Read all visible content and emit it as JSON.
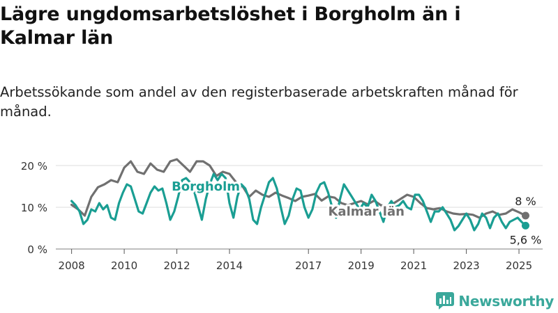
{
  "title": "Lägre ungdomsarbetslöshet i Borgholm än i Kalmar län",
  "subtitle": "Arbetssökande som andel av den registerbaserade arbetskraften månad för månad.",
  "brand": {
    "name": "Newsworthy"
  },
  "colors": {
    "borgholm": "#1a9e93",
    "kalmar": "#707070",
    "grid": "#dddddd"
  },
  "chart_data": {
    "type": "line",
    "x_unit": "year",
    "xlim": [
      2007.4,
      2025.9
    ],
    "ylim": [
      0,
      22
    ],
    "y_ticks": [
      {
        "value": 0,
        "label": "0 %"
      },
      {
        "value": 10,
        "label": "10 %"
      },
      {
        "value": 20,
        "label": "20 %"
      }
    ],
    "x_ticks": [
      {
        "value": 2008,
        "label": "2008"
      },
      {
        "value": 2010,
        "label": "2010"
      },
      {
        "value": 2012,
        "label": "2012"
      },
      {
        "value": 2014,
        "label": "2014"
      },
      {
        "value": 2017,
        "label": "2017"
      },
      {
        "value": 2019,
        "label": "2019"
      },
      {
        "value": 2021,
        "label": "2021"
      },
      {
        "value": 2023,
        "label": "2023"
      },
      {
        "value": 2025,
        "label": "2025"
      }
    ],
    "grid": true,
    "series": [
      {
        "name": "Kalmar län",
        "color": "#707070",
        "end_label": "8 %",
        "x": [
          2008.0,
          2008.25,
          2008.5,
          2008.75,
          2009.0,
          2009.25,
          2009.5,
          2009.75,
          2010.0,
          2010.25,
          2010.5,
          2010.75,
          2011.0,
          2011.25,
          2011.5,
          2011.75,
          2012.0,
          2012.25,
          2012.5,
          2012.75,
          2013.0,
          2013.25,
          2013.5,
          2013.75,
          2014.0,
          2014.25,
          2014.5,
          2014.75,
          2015.0,
          2015.25,
          2015.5,
          2015.75,
          2016.0,
          2016.25,
          2016.5,
          2016.75,
          2017.0,
          2017.25,
          2017.5,
          2017.75,
          2018.0,
          2018.25,
          2018.5,
          2018.75,
          2019.0,
          2019.25,
          2019.5,
          2019.75,
          2020.0,
          2020.25,
          2020.5,
          2020.75,
          2021.0,
          2021.25,
          2021.5,
          2021.75,
          2022.0,
          2022.25,
          2022.5,
          2022.75,
          2023.0,
          2023.25,
          2023.5,
          2023.75,
          2024.0,
          2024.25,
          2024.5,
          2024.75,
          2025.0,
          2025.25
        ],
        "values": [
          10.6,
          9.5,
          8.0,
          12.5,
          14.8,
          15.5,
          16.5,
          16.0,
          19.5,
          21.0,
          18.5,
          18.0,
          20.5,
          19.0,
          18.5,
          21.0,
          21.5,
          20.0,
          18.5,
          21.0,
          21.0,
          20.0,
          17.5,
          18.5,
          18.0,
          16.0,
          15.0,
          12.5,
          14.0,
          13.0,
          12.5,
          13.5,
          12.8,
          12.2,
          11.5,
          12.5,
          12.8,
          13.2,
          11.6,
          12.6,
          12.3,
          11.0,
          10.5,
          11.0,
          11.5,
          10.7,
          11.6,
          10.5,
          10.2,
          11.0,
          12.0,
          13.0,
          12.5,
          11.0,
          9.8,
          9.5,
          9.8,
          9.0,
          8.5,
          8.3,
          8.4,
          8.2,
          7.5,
          8.5,
          9.0,
          8.2,
          8.5,
          9.5,
          8.8,
          8.0
        ]
      },
      {
        "name": "Borgholm",
        "color": "#1a9e93",
        "end_label": "5,6 %",
        "x": [
          2008.0,
          2008.15,
          2008.3,
          2008.45,
          2008.6,
          2008.75,
          2008.9,
          2009.05,
          2009.2,
          2009.35,
          2009.5,
          2009.65,
          2009.8,
          2009.95,
          2010.1,
          2010.25,
          2010.4,
          2010.55,
          2010.7,
          2010.85,
          2011.0,
          2011.15,
          2011.3,
          2011.45,
          2011.6,
          2011.75,
          2011.9,
          2012.05,
          2012.2,
          2012.35,
          2012.5,
          2012.65,
          2012.8,
          2012.95,
          2013.1,
          2013.25,
          2013.4,
          2013.55,
          2013.7,
          2013.85,
          2014.0,
          2014.15,
          2014.3,
          2014.45,
          2014.6,
          2014.75,
          2014.9,
          2015.05,
          2015.2,
          2015.35,
          2015.5,
          2015.65,
          2015.8,
          2015.95,
          2016.1,
          2016.25,
          2016.4,
          2016.55,
          2016.7,
          2016.85,
          2017.0,
          2017.15,
          2017.3,
          2017.45,
          2017.6,
          2017.75,
          2017.9,
          2018.05,
          2018.2,
          2018.35,
          2018.5,
          2018.65,
          2018.8,
          2018.95,
          2019.1,
          2019.25,
          2019.4,
          2019.55,
          2019.7,
          2019.85,
          2020.0,
          2020.15,
          2020.3,
          2020.45,
          2020.6,
          2020.75,
          2020.9,
          2021.05,
          2021.2,
          2021.35,
          2021.5,
          2021.65,
          2021.8,
          2021.95,
          2022.1,
          2022.25,
          2022.4,
          2022.55,
          2022.7,
          2022.85,
          2023.0,
          2023.15,
          2023.3,
          2023.45,
          2023.6,
          2023.75,
          2023.9,
          2024.05,
          2024.2,
          2024.35,
          2024.5,
          2024.65,
          2024.8,
          2024.95,
          2025.1,
          2025.25
        ],
        "values": [
          11.5,
          10.5,
          9.0,
          6.0,
          7.0,
          9.5,
          9.0,
          11.0,
          9.5,
          10.5,
          7.5,
          7.0,
          11.0,
          13.5,
          15.5,
          15.0,
          12.0,
          9.0,
          8.5,
          11.0,
          13.5,
          15.0,
          14.0,
          14.5,
          11.0,
          7.0,
          9.0,
          12.5,
          16.5,
          17.0,
          16.0,
          14.0,
          10.5,
          7.0,
          12.0,
          15.5,
          18.0,
          16.5,
          18.0,
          17.0,
          11.0,
          7.5,
          12.5,
          15.5,
          14.5,
          12.0,
          7.0,
          6.0,
          10.0,
          13.0,
          16.0,
          17.0,
          14.5,
          10.0,
          6.0,
          8.0,
          12.0,
          14.5,
          14.0,
          10.0,
          7.5,
          9.5,
          13.5,
          15.5,
          16.0,
          13.5,
          10.0,
          7.5,
          12.0,
          15.5,
          14.0,
          12.5,
          11.0,
          9.5,
          11.0,
          10.0,
          13.0,
          11.5,
          9.0,
          6.5,
          10.0,
          11.5,
          10.0,
          10.5,
          11.5,
          10.0,
          9.5,
          13.0,
          13.0,
          11.5,
          9.0,
          6.5,
          9.0,
          9.0,
          10.0,
          8.5,
          7.0,
          4.5,
          5.5,
          7.0,
          8.5,
          7.0,
          4.5,
          6.0,
          8.5,
          7.5,
          5.0,
          7.5,
          8.5,
          6.5,
          5.0,
          6.5,
          7.0,
          7.5,
          6.5,
          5.6
        ]
      }
    ],
    "series_labels": [
      {
        "series": "Borgholm",
        "text": "Borgholm",
        "x": 2013.1,
        "y": 15.0
      },
      {
        "series": "Kalmar län",
        "text": "Kalmar län",
        "x": 2019.2,
        "y": 9.0
      }
    ]
  }
}
